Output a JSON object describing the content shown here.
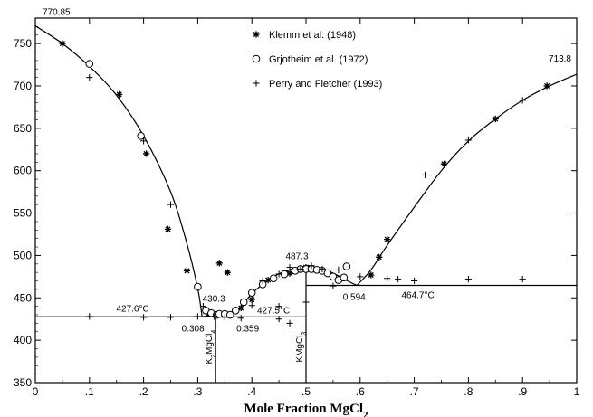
{
  "chart_data": {
    "type": "scatter",
    "title": "",
    "xlabel": "Mole Fraction MgCl",
    "xlabel_sub": "2",
    "ylabel": "",
    "xlim": [
      0,
      1
    ],
    "ylim": [
      350,
      780
    ],
    "grid": false,
    "legend_position": "top-center",
    "x_ticks": [
      {
        "value": 0,
        "label": "0"
      },
      {
        "value": 0.1,
        "label": ".1"
      },
      {
        "value": 0.2,
        "label": ".2"
      },
      {
        "value": 0.3,
        "label": ".3"
      },
      {
        "value": 0.4,
        "label": ".4"
      },
      {
        "value": 0.5,
        "label": ".5"
      },
      {
        "value": 0.6,
        "label": ".6"
      },
      {
        "value": 0.7,
        "label": ".7"
      },
      {
        "value": 0.8,
        "label": ".8"
      },
      {
        "value": 0.9,
        "label": ".9"
      },
      {
        "value": 1,
        "label": "1"
      }
    ],
    "y_ticks": [
      {
        "value": 350,
        "label": "350"
      },
      {
        "value": 400,
        "label": "400"
      },
      {
        "value": 450,
        "label": "450"
      },
      {
        "value": 500,
        "label": "500"
      },
      {
        "value": 550,
        "label": "550"
      },
      {
        "value": 600,
        "label": "600"
      },
      {
        "value": 650,
        "label": "650"
      },
      {
        "value": 700,
        "label": "700"
      },
      {
        "value": 750,
        "label": "750"
      }
    ],
    "series": [
      {
        "name": "Klemm et al. (1948)",
        "marker": "asterisk",
        "points": [
          [
            0.05,
            750
          ],
          [
            0.155,
            690
          ],
          [
            0.205,
            620
          ],
          [
            0.245,
            531
          ],
          [
            0.28,
            482
          ],
          [
            0.32,
            431
          ],
          [
            0.335,
            430
          ],
          [
            0.34,
            491
          ],
          [
            0.355,
            480
          ],
          [
            0.38,
            438
          ],
          [
            0.4,
            448
          ],
          [
            0.43,
            471
          ],
          [
            0.47,
            479
          ],
          [
            0.5,
            486
          ],
          [
            0.51,
            484
          ],
          [
            0.56,
            472
          ],
          [
            0.62,
            477
          ],
          [
            0.635,
            498
          ],
          [
            0.65,
            519
          ],
          [
            0.755,
            608
          ],
          [
            0.85,
            661
          ],
          [
            0.945,
            700
          ]
        ]
      },
      {
        "name": "Grjotheim et al. (1972)",
        "marker": "circle",
        "points": [
          [
            0.1,
            726
          ],
          [
            0.195,
            641
          ],
          [
            0.3,
            463
          ],
          [
            0.315,
            435
          ],
          [
            0.325,
            432
          ],
          [
            0.335,
            430
          ],
          [
            0.34,
            431
          ],
          [
            0.35,
            431
          ],
          [
            0.36,
            430
          ],
          [
            0.37,
            435
          ],
          [
            0.385,
            445
          ],
          [
            0.4,
            456
          ],
          [
            0.42,
            466
          ],
          [
            0.44,
            473
          ],
          [
            0.46,
            478
          ],
          [
            0.48,
            482
          ],
          [
            0.49,
            484
          ],
          [
            0.5,
            484
          ],
          [
            0.51,
            484
          ],
          [
            0.52,
            483
          ],
          [
            0.53,
            482
          ],
          [
            0.54,
            479
          ],
          [
            0.55,
            475
          ],
          [
            0.56,
            471
          ],
          [
            0.57,
            474
          ],
          [
            0.575,
            487
          ]
        ]
      },
      {
        "name": "Perry and Fletcher (1993)",
        "marker": "plus",
        "points": [
          [
            0.1,
            710
          ],
          [
            0.2,
            635
          ],
          [
            0.25,
            560
          ],
          [
            0.1,
            428
          ],
          [
            0.2,
            427
          ],
          [
            0.25,
            427
          ],
          [
            0.3,
            428
          ],
          [
            0.31,
            440
          ],
          [
            0.33,
            428
          ],
          [
            0.35,
            427
          ],
          [
            0.38,
            426
          ],
          [
            0.4,
            441
          ],
          [
            0.42,
            470
          ],
          [
            0.45,
            478
          ],
          [
            0.47,
            486
          ],
          [
            0.49,
            484
          ],
          [
            0.51,
            488
          ],
          [
            0.53,
            484
          ],
          [
            0.56,
            483
          ],
          [
            0.6,
            475
          ],
          [
            0.65,
            473
          ],
          [
            0.67,
            472
          ],
          [
            0.7,
            470
          ],
          [
            0.72,
            595
          ],
          [
            0.8,
            636
          ],
          [
            0.8,
            472
          ],
          [
            0.9,
            683
          ],
          [
            0.9,
            472
          ],
          [
            0.45,
            440
          ],
          [
            0.5,
            445
          ],
          [
            0.55,
            464
          ],
          [
            0.45,
            425
          ],
          [
            0.47,
            420
          ]
        ]
      }
    ],
    "curves": {
      "liquidus_left": [
        [
          0,
          770.85
        ],
        [
          0.05,
          750
        ],
        [
          0.1,
          723
        ],
        [
          0.15,
          689
        ],
        [
          0.2,
          641
        ],
        [
          0.25,
          575
        ],
        [
          0.28,
          514
        ],
        [
          0.3,
          461
        ],
        [
          0.308,
          427.6
        ]
      ],
      "liquidus_mid": [
        [
          0.308,
          427.6
        ],
        [
          0.32,
          429
        ],
        [
          0.333,
          430.3
        ],
        [
          0.345,
          429
        ],
        [
          0.359,
          427.5
        ]
      ],
      "liquidus_k_mgcl3": [
        [
          0.359,
          427.5
        ],
        [
          0.38,
          440
        ],
        [
          0.4,
          455
        ],
        [
          0.42,
          466
        ],
        [
          0.44,
          475
        ],
        [
          0.46,
          481
        ],
        [
          0.48,
          485
        ],
        [
          0.5,
          487.3
        ],
        [
          0.52,
          486
        ],
        [
          0.54,
          482
        ],
        [
          0.56,
          476
        ],
        [
          0.58,
          469
        ],
        [
          0.594,
          464.7
        ]
      ],
      "liquidus_right": [
        [
          0.594,
          464.7
        ],
        [
          0.62,
          483
        ],
        [
          0.65,
          512
        ],
        [
          0.7,
          557
        ],
        [
          0.75,
          600
        ],
        [
          0.8,
          635
        ],
        [
          0.85,
          661
        ],
        [
          0.9,
          683
        ],
        [
          0.95,
          700
        ],
        [
          1.0,
          713.8
        ]
      ],
      "eutectic_1": [
        [
          0,
          427.6
        ],
        [
          0.333,
          427.6
        ]
      ],
      "eutectic_2": [
        [
          0.333,
          427.5
        ],
        [
          0.5,
          427.5
        ]
      ],
      "eutectic_3": [
        [
          0.5,
          464.7
        ],
        [
          1.0,
          464.7
        ]
      ],
      "compound_k2mgcl4": [
        [
          0.333,
          350
        ],
        [
          0.333,
          430.3
        ]
      ],
      "compound_kmgcl3": [
        [
          0.5,
          350
        ],
        [
          0.5,
          487.3
        ]
      ]
    },
    "annotations": [
      {
        "text": "770.85",
        "x": 0.0,
        "y": 770.85,
        "anchor": "start",
        "dx": 8,
        "dy": -12
      },
      {
        "text": "713.8",
        "x": 1.0,
        "y": 713.8,
        "anchor": "end",
        "dx": -6,
        "dy": -14
      },
      {
        "text": "487.3",
        "x": 0.5,
        "y": 487.3,
        "anchor": "middle",
        "dx": -10,
        "dy": -8
      },
      {
        "text": "430.3",
        "x": 0.333,
        "y": 430.3,
        "anchor": "middle",
        "dx": -2,
        "dy": -14
      },
      {
        "text": "427.6°C",
        "x": 0.2,
        "y": 427.6,
        "anchor": "middle",
        "dx": -12,
        "dy": -6
      },
      {
        "text": "427.5°C",
        "x": 0.45,
        "y": 427.5,
        "anchor": "middle",
        "dx": -6,
        "dy": -4
      },
      {
        "text": "464.7°C",
        "x": 0.71,
        "y": 464.7,
        "anchor": "middle",
        "dx": -2,
        "dy": 14
      },
      {
        "text": "0.308",
        "x": 0.308,
        "y": 427.6,
        "anchor": "middle",
        "dx": -10,
        "dy": 16
      },
      {
        "text": "0.359",
        "x": 0.359,
        "y": 427.5,
        "anchor": "middle",
        "dx": 20,
        "dy": 16
      },
      {
        "text": "0.594",
        "x": 0.594,
        "y": 464.7,
        "anchor": "middle",
        "dx": -3,
        "dy": 16
      }
    ],
    "compound_labels": [
      {
        "text": "K",
        "sub": "2",
        "text2": "MgCl",
        "sub2": "4",
        "x": 0.333,
        "y": 392
      },
      {
        "text": "KMgCl",
        "sub": "3",
        "text2": "",
        "sub2": "",
        "x": 0.5,
        "y": 392
      }
    ]
  }
}
